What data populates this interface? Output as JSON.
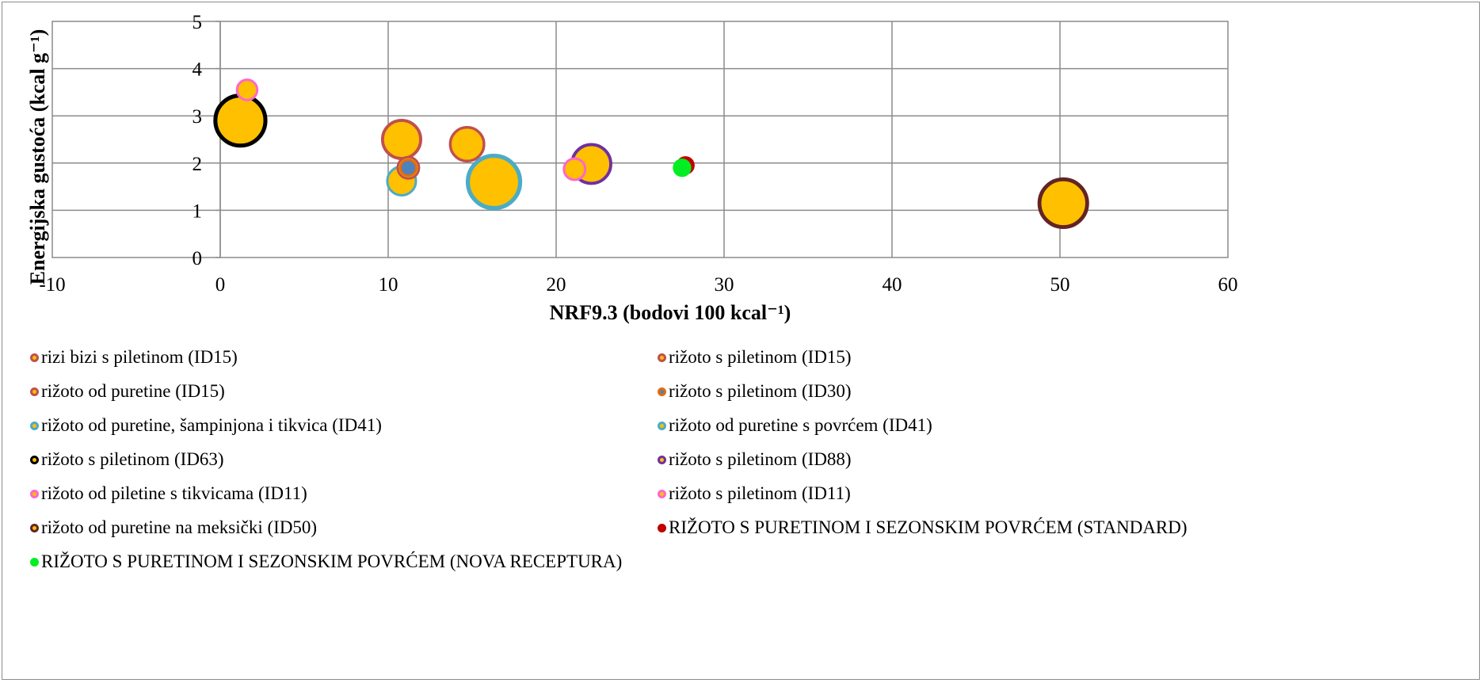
{
  "chart_data": {
    "type": "bubble",
    "xlabel": "NRF9.3 (bodovi 100 kcal⁻¹)",
    "ylabel": "Energijska gustoća (kcal g⁻¹)",
    "xlim": [
      -10,
      60
    ],
    "ylim": [
      0,
      5
    ],
    "x_ticks": [
      "-10",
      "0",
      "10",
      "20",
      "30",
      "40",
      "50",
      "60"
    ],
    "y_ticks": [
      "0",
      "1",
      "2",
      "3",
      "4",
      "5"
    ],
    "grid": true,
    "legend_position": "bottom",
    "series": [
      {
        "name": "rizi bizi s piletinom (ID15)",
        "x": 10.8,
        "y": 2.5,
        "size": 3.2,
        "fill": "#ffc000",
        "stroke": "#c0504d"
      },
      {
        "name": "rižoto s piletinom (ID15)",
        "x": 14.7,
        "y": 2.4,
        "size": 2.5,
        "fill": "#ffc000",
        "stroke": "#c0504d"
      },
      {
        "name": "rižoto od puretine (ID15)",
        "x": 11.2,
        "y": 1.9,
        "size": 1.0,
        "fill": "#ffc000",
        "stroke": "#c0504d"
      },
      {
        "name": "rižoto s piletinom (ID30)",
        "x": 11.2,
        "y": 1.9,
        "size": 0.4,
        "fill": "#4f81bd",
        "stroke": "#e36c0a"
      },
      {
        "name": "rižoto od puretine, šampinjona i tikvica (ID41)",
        "x": 10.8,
        "y": 1.62,
        "size": 1.8,
        "fill": "#ffc000",
        "stroke": "#4bacc6"
      },
      {
        "name": "rižoto od puretine s povrćem (ID41)",
        "x": 16.3,
        "y": 1.6,
        "size": 6.0,
        "fill": "#ffc000",
        "stroke": "#4bacc6"
      },
      {
        "name": "rižoto s piletinom (ID63)",
        "x": 1.2,
        "y": 2.9,
        "size": 5.5,
        "fill": "#ffc000",
        "stroke": "#000000"
      },
      {
        "name": "rižoto s piletinom (ID88)",
        "x": 22.1,
        "y": 1.98,
        "size": 3.3,
        "fill": "#ffc000",
        "stroke": "#7030a0"
      },
      {
        "name": "rižoto od piletine s tikvicama (ID11)",
        "x": 1.6,
        "y": 3.55,
        "size": 0.9,
        "fill": "#ffc000",
        "stroke": "#ff66cc"
      },
      {
        "name": "rižoto s piletinom (ID11)",
        "x": 21.1,
        "y": 1.87,
        "size": 1.0,
        "fill": "#ffc000",
        "stroke": "#ff66cc"
      },
      {
        "name": "rižoto od puretine na meksički (ID50)",
        "x": 50.2,
        "y": 1.15,
        "size": 5.0,
        "fill": "#ffc000",
        "stroke": "#632423"
      },
      {
        "name": "RIŽOTO S PURETINOM I SEZONSKIM POVRĆEM (STANDARD)",
        "x": 27.7,
        "y": 1.95,
        "size": 0.75,
        "fill": "#c00000",
        "stroke": "#c00000"
      },
      {
        "name": "RIŽOTO S PURETINOM I SEZONSKIM POVRĆEM (NOVA RECEPTURA)",
        "x": 27.5,
        "y": 1.9,
        "size": 0.75,
        "fill": "#00ee22",
        "stroke": "#00ee22"
      }
    ]
  }
}
